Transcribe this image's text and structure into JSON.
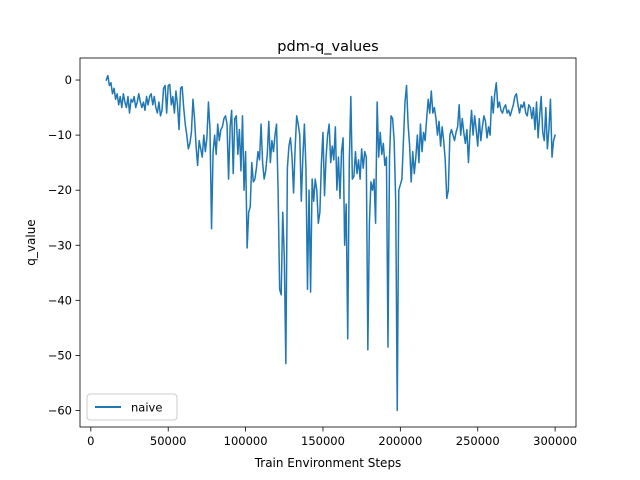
{
  "chart_data": {
    "type": "line",
    "title": "pdm-q_values",
    "xlabel": "Train Environment Steps",
    "ylabel": "q_value",
    "xlim": [
      -7000,
      313500
    ],
    "ylim": [
      -63,
      4
    ],
    "xticks": [
      0,
      50000,
      100000,
      150000,
      200000,
      250000,
      300000
    ],
    "yticks": [
      0,
      -10,
      -20,
      -30,
      -40,
      -50,
      -60
    ],
    "grid": false,
    "legend": {
      "position": "lower-left",
      "entries": [
        "naive"
      ]
    },
    "series": [
      {
        "name": "naive",
        "color": "#1f77b4",
        "points": [
          [
            10000,
            0.0
          ],
          [
            11000,
            0.8
          ],
          [
            12000,
            -1.0
          ],
          [
            13000,
            -0.5
          ],
          [
            14000,
            -2.5
          ],
          [
            15000,
            -1.5
          ],
          [
            16000,
            -3.5
          ],
          [
            17000,
            -2.5
          ],
          [
            18000,
            -4.5
          ],
          [
            19000,
            -3.0
          ],
          [
            20000,
            -5.0
          ],
          [
            21000,
            -2.5
          ],
          [
            22000,
            -4.0
          ],
          [
            23000,
            -5.0
          ],
          [
            24000,
            -3.0
          ],
          [
            25000,
            -6.0
          ],
          [
            26000,
            -3.5
          ],
          [
            27000,
            -4.0
          ],
          [
            28000,
            -3.0
          ],
          [
            29000,
            -5.0
          ],
          [
            30000,
            -4.0
          ],
          [
            31000,
            -2.5
          ],
          [
            32000,
            -4.0
          ],
          [
            33000,
            -5.0
          ],
          [
            34000,
            -4.0
          ],
          [
            35000,
            -5.5
          ],
          [
            36000,
            -3.0
          ],
          [
            37000,
            -4.5
          ],
          [
            38000,
            -3.0
          ],
          [
            39000,
            -2.5
          ],
          [
            40000,
            -4.5
          ],
          [
            41000,
            -3.0
          ],
          [
            42000,
            -5.0
          ],
          [
            43000,
            -6.0
          ],
          [
            44000,
            -4.0
          ],
          [
            45000,
            -6.5
          ],
          [
            46000,
            -5.5
          ],
          [
            47000,
            -1.5
          ],
          [
            48000,
            -1.0
          ],
          [
            49000,
            -6.0
          ],
          [
            50000,
            -1.0
          ],
          [
            51000,
            -0.8
          ],
          [
            52000,
            -4.5
          ],
          [
            53000,
            -3.0
          ],
          [
            54000,
            -6.0
          ],
          [
            55000,
            -2.0
          ],
          [
            56000,
            -4.5
          ],
          [
            57000,
            -9.0
          ],
          [
            58000,
            -1.5
          ],
          [
            59000,
            -1.2
          ],
          [
            60000,
            -5.0
          ],
          [
            61000,
            -8.0
          ],
          [
            62000,
            -10.0
          ],
          [
            63000,
            -12.5
          ],
          [
            64000,
            -11.5
          ],
          [
            65000,
            -9.5
          ],
          [
            66000,
            -3.5
          ],
          [
            67000,
            -7.0
          ],
          [
            68000,
            -12.0
          ],
          [
            69000,
            -15.5
          ],
          [
            70000,
            -11.0
          ],
          [
            71000,
            -12.5
          ],
          [
            72000,
            -14.0
          ],
          [
            73000,
            -10.0
          ],
          [
            74000,
            -13.0
          ],
          [
            75000,
            -10.5
          ],
          [
            76000,
            -4.0
          ],
          [
            77000,
            -9.0
          ],
          [
            78000,
            -27.0
          ],
          [
            79000,
            -13.0
          ],
          [
            80000,
            -10.0
          ],
          [
            81000,
            -13.5
          ],
          [
            82000,
            -8.0
          ],
          [
            83000,
            -11.0
          ],
          [
            84000,
            -9.0
          ],
          [
            85000,
            -8.5
          ],
          [
            86000,
            -7.0
          ],
          [
            87000,
            -6.5
          ],
          [
            88000,
            -8.0
          ],
          [
            89000,
            -18.0
          ],
          [
            90000,
            -8.5
          ],
          [
            91000,
            -5.5
          ],
          [
            92000,
            -17.0
          ],
          [
            93000,
            -7.0
          ],
          [
            94000,
            -6.5
          ],
          [
            95000,
            -13.5
          ],
          [
            96000,
            -9.0
          ],
          [
            97000,
            -16.5
          ],
          [
            98000,
            -6.5
          ],
          [
            99000,
            -20.0
          ],
          [
            100000,
            -13.0
          ],
          [
            101000,
            -30.5
          ],
          [
            102000,
            -24.0
          ],
          [
            103000,
            -23.0
          ],
          [
            104000,
            -15.0
          ],
          [
            105000,
            -18.5
          ],
          [
            106000,
            -18.0
          ],
          [
            107000,
            -16.0
          ],
          [
            108000,
            -13.0
          ],
          [
            109000,
            -14.5
          ],
          [
            110000,
            -8.0
          ],
          [
            111000,
            -15.0
          ],
          [
            112000,
            -18.0
          ],
          [
            113000,
            -16.5
          ],
          [
            114000,
            -13.5
          ],
          [
            115000,
            -7.5
          ],
          [
            116000,
            -15.0
          ],
          [
            117000,
            -11.0
          ],
          [
            118000,
            -13.0
          ],
          [
            119000,
            -10.0
          ],
          [
            120000,
            -8.0
          ],
          [
            121000,
            -20.0
          ],
          [
            122000,
            -38.0
          ],
          [
            123000,
            -39.0
          ],
          [
            124000,
            -24.0
          ],
          [
            125000,
            -32.0
          ],
          [
            126000,
            -51.5
          ],
          [
            127000,
            -16.0
          ],
          [
            128000,
            -12.0
          ],
          [
            129000,
            -10.5
          ],
          [
            130000,
            -14.0
          ],
          [
            131000,
            -20.5
          ],
          [
            132000,
            -12.5
          ],
          [
            133000,
            -6.5
          ],
          [
            134000,
            -8.0
          ],
          [
            135000,
            -10.0
          ],
          [
            136000,
            -22.0
          ],
          [
            137000,
            -14.0
          ],
          [
            138000,
            -8.0
          ],
          [
            139000,
            -16.0
          ],
          [
            140000,
            -38.0
          ],
          [
            141000,
            -20.0
          ],
          [
            142000,
            -38.5
          ],
          [
            143000,
            -18.0
          ],
          [
            144000,
            -22.0
          ],
          [
            145000,
            -18.0
          ],
          [
            146000,
            -20.0
          ],
          [
            147000,
            -26.0
          ],
          [
            148000,
            -24.0
          ],
          [
            149000,
            -15.0
          ],
          [
            150000,
            -9.5
          ],
          [
            151000,
            -21.0
          ],
          [
            152000,
            -14.0
          ],
          [
            153000,
            -10.0
          ],
          [
            154000,
            -8.0
          ],
          [
            155000,
            -15.0
          ],
          [
            156000,
            -12.0
          ],
          [
            157000,
            -14.5
          ],
          [
            158000,
            -8.5
          ],
          [
            159000,
            -20.0
          ],
          [
            160000,
            -14.0
          ],
          [
            161000,
            -21.5
          ],
          [
            162000,
            -13.0
          ],
          [
            163000,
            -10.5
          ],
          [
            164000,
            -30.0
          ],
          [
            165000,
            -22.5
          ],
          [
            166000,
            -47.0
          ],
          [
            167000,
            -15.0
          ],
          [
            168000,
            -3.0
          ],
          [
            169000,
            -18.0
          ],
          [
            170000,
            -17.5
          ],
          [
            171000,
            -13.0
          ],
          [
            172000,
            -17.0
          ],
          [
            173000,
            -14.5
          ],
          [
            174000,
            -18.0
          ],
          [
            175000,
            -12.5
          ],
          [
            176000,
            -16.0
          ],
          [
            177000,
            -13.0
          ],
          [
            178000,
            -14.0
          ],
          [
            179000,
            -49.0
          ],
          [
            180000,
            -26.0
          ],
          [
            181000,
            -18.5
          ],
          [
            182000,
            -20.0
          ],
          [
            183000,
            -18.0
          ],
          [
            184000,
            -26.0
          ],
          [
            185000,
            -4.0
          ],
          [
            186000,
            -14.0
          ],
          [
            187000,
            -9.5
          ],
          [
            188000,
            -13.5
          ],
          [
            189000,
            -11.5
          ],
          [
            190000,
            -15.5
          ],
          [
            191000,
            -14.0
          ],
          [
            192000,
            -48.5
          ],
          [
            193000,
            -14.0
          ],
          [
            194000,
            -6.5
          ],
          [
            195000,
            -7.0
          ],
          [
            196000,
            -11.0
          ],
          [
            197000,
            -22.0
          ],
          [
            198000,
            -60.0
          ],
          [
            199000,
            -20.0
          ],
          [
            200000,
            -19.0
          ],
          [
            201000,
            -18.0
          ],
          [
            202000,
            -11.0
          ],
          [
            203000,
            -4.0
          ],
          [
            204000,
            -1.0
          ],
          [
            205000,
            -8.0
          ],
          [
            206000,
            -12.0
          ],
          [
            207000,
            -18.5
          ],
          [
            208000,
            -13.0
          ],
          [
            209000,
            -17.0
          ],
          [
            210000,
            -14.0
          ],
          [
            211000,
            -10.0
          ],
          [
            212000,
            -15.0
          ],
          [
            213000,
            -8.0
          ],
          [
            214000,
            -13.0
          ],
          [
            215000,
            -9.5
          ],
          [
            216000,
            -11.0
          ],
          [
            217000,
            -7.0
          ],
          [
            218000,
            -3.5
          ],
          [
            219000,
            -6.0
          ],
          [
            220000,
            -2.0
          ],
          [
            221000,
            -6.0
          ],
          [
            222000,
            -5.0
          ],
          [
            223000,
            -7.0
          ],
          [
            224000,
            -10.0
          ],
          [
            225000,
            -7.5
          ],
          [
            226000,
            -12.0
          ],
          [
            227000,
            -8.5
          ],
          [
            228000,
            -11.0
          ],
          [
            229000,
            -14.5
          ],
          [
            230000,
            -21.5
          ],
          [
            231000,
            -20.0
          ],
          [
            232000,
            -10.0
          ],
          [
            233000,
            -9.0
          ],
          [
            234000,
            -10.0
          ],
          [
            235000,
            -11.0
          ],
          [
            236000,
            -9.5
          ],
          [
            237000,
            -8.5
          ],
          [
            238000,
            -4.5
          ],
          [
            239000,
            -10.0
          ],
          [
            240000,
            -7.0
          ],
          [
            241000,
            -9.5
          ],
          [
            242000,
            -11.5
          ],
          [
            243000,
            -9.0
          ],
          [
            244000,
            -15.0
          ],
          [
            245000,
            -9.5
          ],
          [
            246000,
            -5.5
          ],
          [
            247000,
            -10.0
          ],
          [
            248000,
            -6.5
          ],
          [
            249000,
            -9.0
          ],
          [
            250000,
            -12.0
          ],
          [
            251000,
            -7.0
          ],
          [
            252000,
            -11.0
          ],
          [
            253000,
            -8.5
          ],
          [
            254000,
            -6.5
          ],
          [
            255000,
            -7.5
          ],
          [
            256000,
            -10.5
          ],
          [
            257000,
            -8.5
          ],
          [
            258000,
            -10.0
          ],
          [
            259000,
            -3.0
          ],
          [
            260000,
            -6.0
          ],
          [
            261000,
            -2.5
          ],
          [
            262000,
            -0.5
          ],
          [
            263000,
            -5.0
          ],
          [
            264000,
            -4.0
          ],
          [
            265000,
            -5.5
          ],
          [
            266000,
            -6.0
          ],
          [
            267000,
            -5.0
          ],
          [
            268000,
            -4.5
          ],
          [
            269000,
            -6.0
          ],
          [
            270000,
            -5.5
          ],
          [
            271000,
            -6.5
          ],
          [
            272000,
            -5.5
          ],
          [
            273000,
            -4.5
          ],
          [
            274000,
            -3.0
          ],
          [
            275000,
            -2.5
          ],
          [
            276000,
            -4.5
          ],
          [
            277000,
            -6.0
          ],
          [
            278000,
            -4.5
          ],
          [
            279000,
            -5.0
          ],
          [
            280000,
            -4.0
          ],
          [
            281000,
            -6.0
          ],
          [
            282000,
            -6.5
          ],
          [
            283000,
            -4.5
          ],
          [
            284000,
            -5.0
          ],
          [
            285000,
            -7.0
          ],
          [
            286000,
            -5.0
          ],
          [
            287000,
            -9.0
          ],
          [
            288000,
            -4.0
          ],
          [
            289000,
            -10.5
          ],
          [
            290000,
            -6.5
          ],
          [
            291000,
            -3.0
          ],
          [
            292000,
            -9.5
          ],
          [
            293000,
            -11.0
          ],
          [
            294000,
            -5.0
          ],
          [
            295000,
            -12.5
          ],
          [
            296000,
            -9.0
          ],
          [
            297000,
            -3.5
          ],
          [
            298000,
            -14.0
          ],
          [
            299000,
            -11.0
          ],
          [
            300000,
            -10.0
          ]
        ]
      }
    ]
  }
}
